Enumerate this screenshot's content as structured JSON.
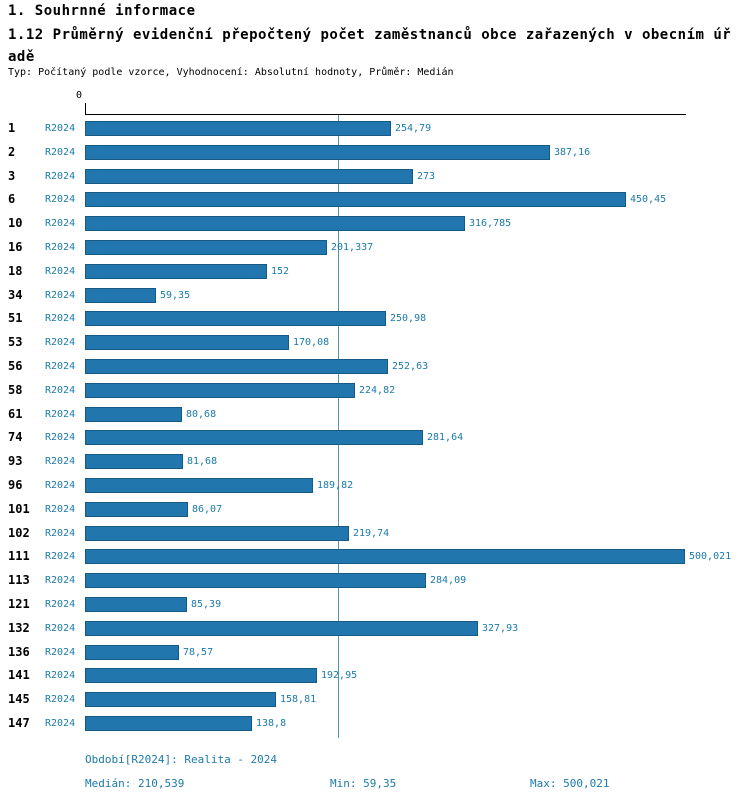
{
  "header": {
    "title": "1. Souhrnné informace",
    "subtitle_line1": "1.12 Průměrný evidenční přepočtený počet zaměstnanců obce zařazených v obecním úř",
    "subtitle_line2": "adě",
    "meta": "Typ: Počítaný podle vzorce, Vyhodnocení: Absolutní hodnoty, Průměr: Medián"
  },
  "chart_data": {
    "type": "bar",
    "orientation": "horizontal",
    "title": "1.12 Průměrný evidenční přepočtený počet zaměstnanců obce zařazených v obecním úřadě",
    "series_label": "R2024",
    "categories": [
      "1",
      "2",
      "3",
      "6",
      "10",
      "16",
      "18",
      "34",
      "51",
      "53",
      "56",
      "58",
      "61",
      "74",
      "93",
      "96",
      "101",
      "102",
      "111",
      "113",
      "121",
      "132",
      "136",
      "141",
      "145",
      "147"
    ],
    "values": [
      254.79,
      387.16,
      273,
      450.45,
      316.785,
      201.337,
      152,
      59.35,
      250.98,
      170.08,
      252.63,
      224.82,
      80.68,
      281.64,
      81.68,
      189.82,
      86.07,
      219.74,
      500.021,
      284.09,
      85.39,
      327.93,
      78.57,
      192.95,
      158.81,
      138.8
    ],
    "value_labels": [
      "254,79",
      "387,16",
      "273",
      "450,45",
      "316,785",
      "201,337",
      "152",
      "59,35",
      "250,98",
      "170,08",
      "252,63",
      "224,82",
      "80,68",
      "281,64",
      "81,68",
      "189,82",
      "86,07",
      "219,74",
      "500,021",
      "284,09",
      "85,39",
      "327,93",
      "78,57",
      "192,95",
      "158,81",
      "138,8"
    ],
    "xlim": [
      0,
      500.021
    ],
    "axis_zero_label": "0",
    "median": 210.539,
    "median_label": "210,539",
    "grid": false,
    "legend_position": "none",
    "colors": {
      "bar": "#2176ae",
      "bar_border": "#155a84",
      "label_text": "#1b7aa9",
      "median_line": "#4e97ad",
      "axis": "#000000",
      "row_number": "#000000"
    }
  },
  "footer": {
    "period": "Období[R2024]: Realita - 2024",
    "median": "Medián: 210,539",
    "min": "Min: 59,35",
    "max": "Max: 500,021"
  }
}
